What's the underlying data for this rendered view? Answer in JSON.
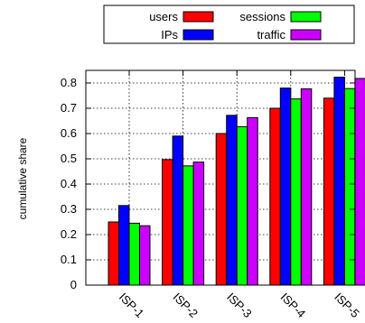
{
  "chart_data": {
    "type": "bar",
    "title": "",
    "xlabel": "",
    "ylabel": "cumulative share",
    "categories": [
      "ISP-1",
      "ISP-2",
      "ISP-3",
      "ISP-4",
      "ISP-5"
    ],
    "ylim": [
      0,
      0.85
    ],
    "yticks": [
      0,
      0.1,
      0.2,
      0.3,
      0.4,
      0.5,
      0.6,
      0.7,
      0.8
    ],
    "ytick_labels": [
      "0",
      "0.1",
      "0.2",
      "0.3",
      "0.4",
      "0.5",
      "0.6",
      "0.7",
      "0.8"
    ],
    "grid": true,
    "legend_position": "top",
    "series": [
      {
        "name": "users",
        "color": "#ff0000",
        "values": [
          0.25,
          0.497,
          0.6,
          0.7,
          0.74
        ]
      },
      {
        "name": "IPs",
        "color": "#0000ff",
        "values": [
          0.315,
          0.59,
          0.672,
          0.78,
          0.823
        ]
      },
      {
        "name": "sessions",
        "color": "#00ff00",
        "values": [
          0.245,
          0.472,
          0.627,
          0.737,
          0.778
        ]
      },
      {
        "name": "traffic",
        "color": "#cc00ff",
        "values": [
          0.235,
          0.487,
          0.663,
          0.777,
          0.818
        ]
      }
    ]
  }
}
